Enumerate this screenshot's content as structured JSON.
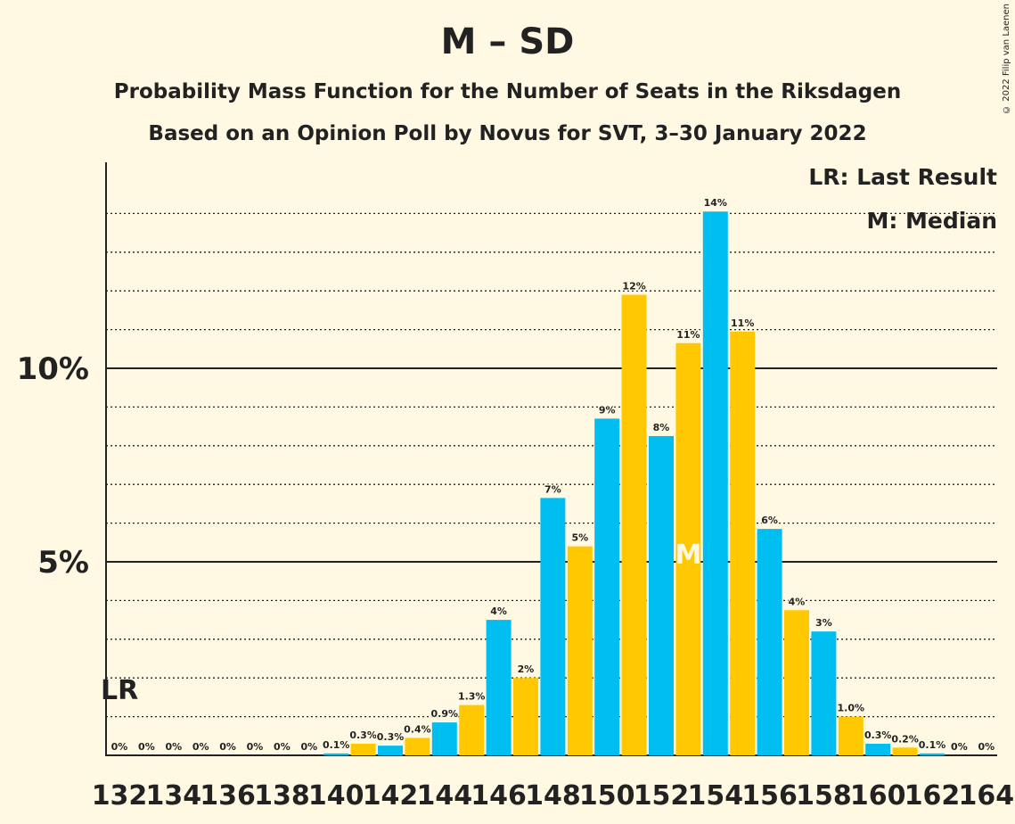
{
  "title": "M – SD",
  "subtitle1": "Probability Mass Function for the Number of Seats in the Riksdagen",
  "subtitle2": "Based on an Opinion Poll by Novus for SVT, 3–30 January 2022",
  "copyright": "© 2022 Filip van Laenen",
  "legend": {
    "lr": "LR: Last Result",
    "m": "M: Median"
  },
  "colors": {
    "background": "#FFF9E3",
    "blue": "#00BFF0",
    "yellow": "#FFC800",
    "axis": "#222222"
  },
  "chart_data": {
    "type": "bar",
    "x": [
      132,
      133,
      134,
      135,
      136,
      137,
      138,
      139,
      140,
      141,
      142,
      143,
      144,
      145,
      146,
      147,
      148,
      149,
      150,
      151,
      152,
      153,
      154,
      155,
      156,
      157,
      158,
      159,
      160,
      161,
      162,
      163,
      164
    ],
    "values": [
      0,
      0,
      0,
      0,
      0,
      0,
      0,
      0,
      0.05,
      0.3,
      0.25,
      0.45,
      0.85,
      1.3,
      3.5,
      2.0,
      6.65,
      5.4,
      8.7,
      11.9,
      8.25,
      10.65,
      14.05,
      10.95,
      5.85,
      3.75,
      3.2,
      1.0,
      0.3,
      0.2,
      0.05,
      0,
      0
    ],
    "labels": [
      "0%",
      "0%",
      "0%",
      "0%",
      "0%",
      "0%",
      "0%",
      "0%",
      "0.1%",
      "0.3%",
      "0.3%",
      "0.4%",
      "0.9%",
      "1.3%",
      "4%",
      "2%",
      "7%",
      "5%",
      "9%",
      "12%",
      "8%",
      "11%",
      "14%",
      "11%",
      "6%",
      "4%",
      "3%",
      "1.0%",
      "0.3%",
      "0.2%",
      "0.1%",
      "0%",
      "0%"
    ],
    "x_tick_labels": [
      "132",
      "134",
      "136",
      "138",
      "140",
      "142",
      "144",
      "146",
      "148",
      "150",
      "152",
      "154",
      "156",
      "158",
      "160",
      "162",
      "164"
    ],
    "y_tick_labels": [
      "5%",
      "10%"
    ],
    "y_ticks": [
      5,
      10
    ],
    "ylim": [
      0,
      15
    ],
    "last_result": {
      "seat": 132,
      "label": "LR"
    },
    "median": {
      "seat": 153,
      "label": "M"
    }
  }
}
